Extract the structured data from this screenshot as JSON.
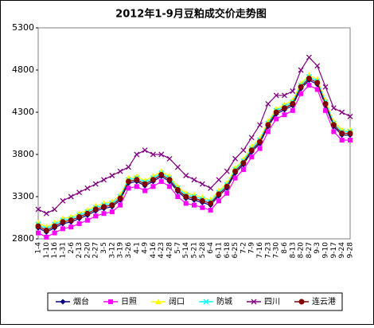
{
  "chart_data": {
    "type": "line",
    "title": "2012年1-9月豆粕成交价走势图",
    "categories": [
      "1-4",
      "1-10",
      "1-16",
      "1-31",
      "2-6",
      "2-13",
      "2-20",
      "2-27",
      "3-5",
      "3-12",
      "3-19",
      "3-26",
      "4-1",
      "4-9",
      "4-16",
      "4-23",
      "4-28",
      "5-7",
      "5-14",
      "5-21",
      "5-28",
      "6-4",
      "6-11",
      "6-18",
      "6-25",
      "7-2",
      "7-9",
      "7-16",
      "7-23",
      "7-30",
      "8-6",
      "8-13",
      "8-20",
      "8-27",
      "9-3",
      "9-10",
      "9-17",
      "9-24",
      "9-28"
    ],
    "series": [
      {
        "name": "烟台",
        "color": "#000080",
        "marker": "diamond",
        "values": [
          2930,
          2880,
          2930,
          2980,
          3000,
          3040,
          3080,
          3130,
          3160,
          3180,
          3260,
          3460,
          3480,
          3430,
          3480,
          3540,
          3480,
          3360,
          3280,
          3260,
          3230,
          3200,
          3310,
          3400,
          3580,
          3680,
          3830,
          3930,
          4130,
          4280,
          4330,
          4380,
          4580,
          4680,
          4630,
          4380,
          4130,
          4030,
          4030
        ]
      },
      {
        "name": "日照",
        "color": "#ff00ff",
        "marker": "square",
        "values": [
          2870,
          2820,
          2870,
          2920,
          2940,
          2980,
          3020,
          3070,
          3100,
          3120,
          3200,
          3400,
          3420,
          3370,
          3420,
          3480,
          3420,
          3300,
          3220,
          3200,
          3170,
          3140,
          3250,
          3340,
          3520,
          3620,
          3770,
          3870,
          4070,
          4220,
          4270,
          4320,
          4520,
          4620,
          4570,
          4320,
          4070,
          3970,
          3970
        ]
      },
      {
        "name": "阔口",
        "color": "#ffff00",
        "marker": "triangle",
        "values": [
          2990,
          2940,
          2990,
          3040,
          3060,
          3100,
          3140,
          3190,
          3220,
          3240,
          3320,
          3520,
          3540,
          3490,
          3540,
          3600,
          3540,
          3420,
          3340,
          3320,
          3290,
          3260,
          3370,
          3460,
          3640,
          3740,
          3890,
          3990,
          4190,
          4340,
          4390,
          4440,
          4640,
          4740,
          4690,
          4440,
          4190,
          4090,
          4090
        ]
      },
      {
        "name": "防城",
        "color": "#00ffff",
        "marker": "x",
        "values": [
          2970,
          2920,
          2970,
          3020,
          3040,
          3080,
          3120,
          3170,
          3200,
          3220,
          3300,
          3500,
          3520,
          3470,
          3520,
          3580,
          3520,
          3400,
          3320,
          3300,
          3270,
          3240,
          3350,
          3440,
          3620,
          3720,
          3870,
          3970,
          4170,
          4320,
          4370,
          4420,
          4620,
          4720,
          4670,
          4420,
          4170,
          4070,
          4070
        ]
      },
      {
        "name": "四川",
        "color": "#800080",
        "marker": "x",
        "values": [
          3150,
          3100,
          3150,
          3250,
          3300,
          3350,
          3400,
          3450,
          3500,
          3550,
          3600,
          3650,
          3800,
          3850,
          3800,
          3800,
          3750,
          3650,
          3550,
          3500,
          3450,
          3400,
          3500,
          3600,
          3750,
          3850,
          4000,
          4150,
          4400,
          4500,
          4500,
          4550,
          4800,
          4950,
          4850,
          4600,
          4350,
          4300,
          4250
        ]
      },
      {
        "name": "连云港",
        "color": "#800000",
        "marker": "circle",
        "values": [
          2950,
          2900,
          2950,
          3000,
          3020,
          3060,
          3100,
          3150,
          3180,
          3200,
          3280,
          3480,
          3500,
          3450,
          3500,
          3560,
          3500,
          3380,
          3300,
          3280,
          3250,
          3220,
          3330,
          3420,
          3600,
          3700,
          3850,
          3950,
          4150,
          4300,
          4350,
          4400,
          4600,
          4700,
          4650,
          4400,
          4150,
          4050,
          4050
        ]
      }
    ],
    "ylim": [
      2800,
      5300
    ],
    "yticks": [
      2800,
      3300,
      3800,
      4300,
      4800,
      5300
    ],
    "legend": "bottom"
  }
}
